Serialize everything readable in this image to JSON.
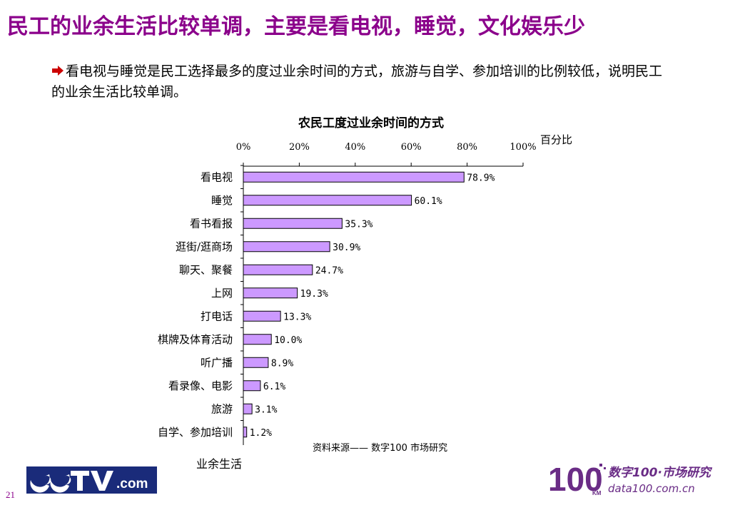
{
  "slide": {
    "title": "民工的业余生活比较单调，主要是看电视，睡觉，文化娱乐少",
    "bullet_text": "看电视与睡觉是民工选择最多的度过业余时间的方式，旅游与自学、参加培训的比例较低，说明民工的业余生活比较单调。",
    "page_number": "21"
  },
  "chart_data": {
    "type": "bar",
    "orientation": "horizontal",
    "title": "农民工度过业余时间的方式",
    "xlabel": "百分比",
    "ylabel": "业余生活",
    "source_note": "资料来源—— 数字100 市场研究",
    "xlim": [
      0,
      100
    ],
    "x_ticks": [
      "0%",
      "20%",
      "40%",
      "60%",
      "80%",
      "100%"
    ],
    "categories": [
      "看电视",
      "睡觉",
      "看书看报",
      "逛街/逛商场",
      "聊天、聚餐",
      "上网",
      "打电话",
      "棋牌及体育活动",
      "听广播",
      "看录像、电影",
      "旅游",
      "自学、参加培训"
    ],
    "values": [
      78.9,
      60.1,
      35.3,
      30.9,
      24.7,
      19.3,
      13.3,
      10.0,
      8.9,
      6.1,
      3.1,
      1.2
    ],
    "value_labels": [
      "78.9%",
      "60.1%",
      "35.3%",
      "30.9%",
      "24.7%",
      "19.3%",
      "13.3%",
      "10.0%",
      "8.9%",
      "6.1%",
      "3.1%",
      "1.2%"
    ],
    "colors": {
      "bar": "#cc99ff",
      "bar_stroke": "#000000"
    }
  },
  "logos": {
    "cctv": {
      "text": "CCTV.com",
      "colors": {
        "primary": "#1a2b7a"
      }
    },
    "data100": {
      "big_text": "100",
      "sub_text_top": "数字100·市场研究",
      "sub_text_bottom": "data100.com.cn",
      "small_text": "KM",
      "colors": {
        "primary": "#6a2c86"
      }
    }
  },
  "theme": {
    "title_color": "#8b008b",
    "bullet_icon": "arrow-right-icon"
  }
}
